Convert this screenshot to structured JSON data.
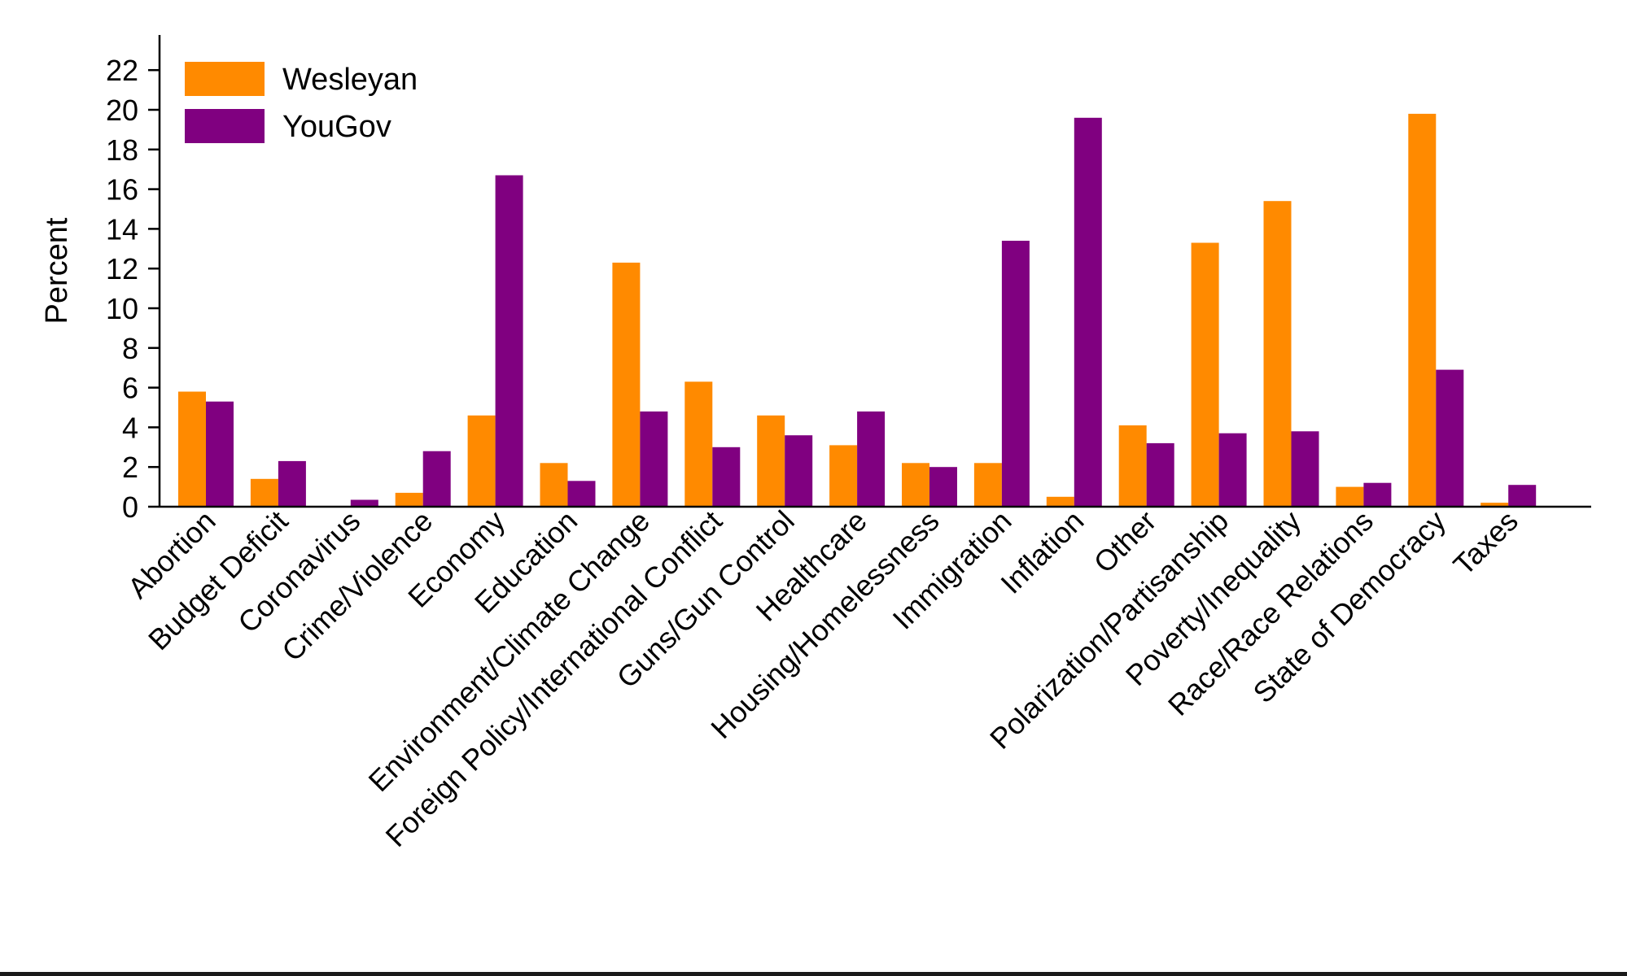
{
  "chart_data": {
    "type": "bar",
    "title": "",
    "xlabel": "",
    "ylabel": "Percent",
    "ylim": [
      0,
      23
    ],
    "yticks": [
      0,
      2,
      4,
      6,
      8,
      10,
      12,
      14,
      16,
      18,
      20,
      22
    ],
    "grid": false,
    "legend_position": "top-left",
    "categories": [
      "Abortion",
      "Budget Deficit",
      "Coronavirus",
      "Crime/Violence",
      "Economy",
      "Education",
      "Environment/Climate Change",
      "Foreign Policy/International Conflict",
      "Guns/Gun Control",
      "Healthcare",
      "Housing/Homelessness",
      "Immigration",
      "Inflation",
      "Other",
      "Polarization/Partisanship",
      "Poverty/Inequality",
      "Race/Race Relations",
      "State of Democracy",
      "Taxes"
    ],
    "series": [
      {
        "name": "Wesleyan",
        "color": "#FF8A00",
        "values": [
          5.8,
          1.4,
          0,
          0.7,
          4.6,
          2.2,
          12.3,
          6.3,
          4.6,
          3.1,
          2.2,
          2.2,
          0.5,
          4.1,
          13.3,
          15.4,
          1.0,
          19.8,
          0.2
        ]
      },
      {
        "name": "YouGov",
        "color": "#800080",
        "values": [
          5.3,
          2.3,
          0.35,
          2.8,
          16.7,
          1.3,
          4.8,
          3.0,
          3.6,
          4.8,
          2.0,
          13.4,
          19.6,
          3.2,
          3.7,
          3.8,
          1.2,
          6.9,
          1.1
        ]
      }
    ]
  }
}
